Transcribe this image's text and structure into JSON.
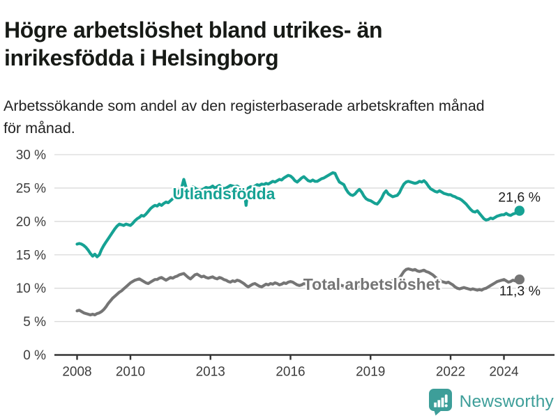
{
  "header": {
    "title_lines": [
      "Högre arbetslöshet bland utrikes- än",
      "inrikesfödda i Helsingborg"
    ],
    "subtitle_lines": [
      "Arbetssökande som andel av den registerbaserade arbetskraften månad",
      "för månad."
    ]
  },
  "footer": {
    "brand": "Newsworthy",
    "logo_icon": "bar-chart-speech-bubble-icon",
    "brand_color": "#3d9e99"
  },
  "chart_data": {
    "type": "line",
    "unit": "%",
    "frequency": "monthly",
    "grid": "horizontal",
    "x_axis": {
      "start_year": 2008,
      "ticks": [
        {
          "year": 2008,
          "label": "2008"
        },
        {
          "year": 2010,
          "label": "2010"
        },
        {
          "year": 2013,
          "label": "2013"
        },
        {
          "year": 2016,
          "label": "2016"
        },
        {
          "year": 2019,
          "label": "2019"
        },
        {
          "year": 2022,
          "label": "2022"
        },
        {
          "year": 2024,
          "label": "2024"
        }
      ]
    },
    "y_axis": {
      "min": 0,
      "max": 30,
      "ticks": [
        {
          "value": 30,
          "label": "30 %"
        },
        {
          "value": 25,
          "label": "25 %"
        },
        {
          "value": 20,
          "label": "20 %"
        },
        {
          "value": 15,
          "label": "15 %"
        },
        {
          "value": 10,
          "label": "10 %"
        },
        {
          "value": 5,
          "label": "5 %"
        },
        {
          "value": 0,
          "label": "0 %"
        }
      ]
    },
    "series": [
      {
        "name": "Utlandsfödda",
        "label": "Utlandsfödda",
        "color": "#16a294",
        "end_label": "21,6 %",
        "last_value": 21.6,
        "values": [
          16.6,
          16.7,
          16.6,
          16.4,
          16.1,
          15.7,
          15.2,
          14.8,
          15.1,
          14.7,
          15.0,
          15.8,
          16.4,
          16.9,
          17.4,
          17.9,
          18.4,
          18.9,
          19.3,
          19.6,
          19.5,
          19.4,
          19.6,
          19.5,
          19.4,
          19.7,
          20.1,
          20.4,
          20.6,
          20.9,
          20.8,
          21.1,
          21.5,
          21.9,
          22.2,
          22.4,
          22.3,
          22.6,
          22.4,
          22.7,
          22.9,
          22.8,
          23.1,
          23.4,
          23.7,
          24.1,
          24.6,
          25.0,
          26.3,
          25.1,
          24.7,
          24.9,
          25.2,
          25.0,
          24.8,
          24.6,
          24.7,
          24.9,
          25.1,
          25.0,
          25.1,
          25.3,
          25.0,
          25.2,
          25.4,
          25.1,
          24.9,
          25.0,
          25.2,
          25.4,
          25.3,
          25.2,
          25.3,
          25.1,
          24.9,
          25.0,
          22.4,
          25.0,
          25.2,
          25.1,
          25.3,
          25.5,
          25.4,
          25.6,
          25.5,
          25.7,
          25.6,
          25.8,
          26.0,
          25.9,
          26.1,
          26.3,
          26.2,
          26.5,
          26.7,
          26.9,
          26.8,
          26.5,
          26.1,
          25.9,
          26.2,
          26.5,
          26.7,
          26.4,
          26.1,
          26.0,
          26.2,
          26.0,
          26.0,
          26.2,
          26.4,
          26.5,
          26.7,
          26.9,
          27.1,
          27.3,
          27.2,
          26.5,
          25.9,
          25.7,
          25.5,
          24.8,
          24.3,
          24.0,
          23.9,
          24.1,
          24.5,
          24.8,
          24.4,
          23.8,
          23.4,
          23.2,
          23.1,
          22.9,
          22.7,
          22.6,
          23.0,
          23.5,
          24.2,
          24.6,
          24.1,
          23.9,
          23.7,
          23.8,
          23.9,
          24.3,
          25.0,
          25.6,
          25.9,
          26.0,
          25.9,
          25.8,
          25.7,
          25.8,
          26.0,
          25.9,
          26.1,
          25.8,
          25.3,
          24.9,
          24.7,
          24.5,
          24.4,
          24.6,
          24.4,
          24.2,
          24.1,
          24.0,
          24.0,
          23.8,
          23.7,
          23.5,
          23.4,
          23.2,
          22.9,
          22.6,
          22.2,
          21.8,
          21.5,
          21.4,
          21.6,
          21.2,
          20.8,
          20.4,
          20.2,
          20.3,
          20.5,
          20.4,
          20.6,
          20.8,
          20.9,
          21.0,
          21.0,
          21.2,
          21.0,
          20.9,
          21.1,
          21.2,
          21.4,
          21.6
        ]
      },
      {
        "name": "Total arbetslöshet",
        "label": "Total arbetslöshet",
        "color": "#757575",
        "end_label": "11,3 %",
        "last_value": 11.3,
        "values": [
          6.6,
          6.7,
          6.5,
          6.3,
          6.2,
          6.1,
          6.0,
          6.1,
          6.0,
          6.2,
          6.3,
          6.5,
          6.8,
          7.2,
          7.7,
          8.1,
          8.5,
          8.8,
          9.1,
          9.4,
          9.6,
          9.9,
          10.2,
          10.5,
          10.8,
          11.0,
          11.2,
          11.3,
          11.4,
          11.2,
          11.0,
          10.8,
          10.7,
          10.9,
          11.1,
          11.3,
          11.3,
          11.5,
          11.6,
          11.4,
          11.2,
          11.4,
          11.6,
          11.5,
          11.7,
          11.8,
          12.0,
          12.1,
          12.2,
          11.9,
          11.6,
          11.4,
          11.7,
          12.0,
          12.1,
          11.9,
          11.7,
          11.8,
          11.6,
          11.5,
          11.6,
          11.7,
          11.5,
          11.4,
          11.6,
          11.5,
          11.3,
          11.2,
          11.0,
          10.9,
          11.1,
          11.0,
          11.2,
          11.1,
          10.9,
          10.7,
          10.4,
          10.2,
          10.4,
          10.6,
          10.7,
          10.5,
          10.3,
          10.2,
          10.4,
          10.6,
          10.5,
          10.7,
          10.6,
          10.8,
          10.7,
          10.5,
          10.6,
          10.8,
          10.7,
          10.9,
          11.0,
          10.9,
          10.7,
          10.5,
          10.4,
          10.5,
          10.7,
          10.6,
          10.4,
          10.5,
          10.6,
          10.5,
          10.4,
          10.5,
          10.6,
          10.4,
          10.3,
          10.4,
          10.5,
          10.4,
          10.3,
          10.4,
          10.5,
          10.4,
          10.3,
          10.2,
          10.3,
          10.4,
          10.3,
          10.2,
          10.1,
          10.2,
          10.3,
          10.2,
          10.3,
          10.4,
          10.3,
          10.4,
          10.5,
          10.6,
          10.7,
          10.8,
          10.9,
          11.0,
          10.9,
          11.0,
          11.1,
          11.2,
          11.3,
          11.5,
          12.0,
          12.5,
          12.8,
          12.9,
          12.8,
          12.7,
          12.8,
          12.6,
          12.5,
          12.6,
          12.7,
          12.5,
          12.4,
          12.2,
          12.0,
          11.7,
          11.4,
          11.2,
          11.0,
          10.9,
          10.8,
          10.9,
          10.7,
          10.5,
          10.2,
          10.0,
          9.9,
          10.0,
          10.1,
          10.0,
          9.9,
          9.8,
          9.9,
          9.8,
          9.7,
          9.8,
          9.7,
          9.9,
          10.0,
          10.2,
          10.4,
          10.6,
          10.8,
          11.0,
          11.1,
          11.2,
          11.3,
          11.1,
          10.9,
          11.0,
          11.2,
          11.1,
          11.2,
          11.3
        ]
      }
    ]
  }
}
